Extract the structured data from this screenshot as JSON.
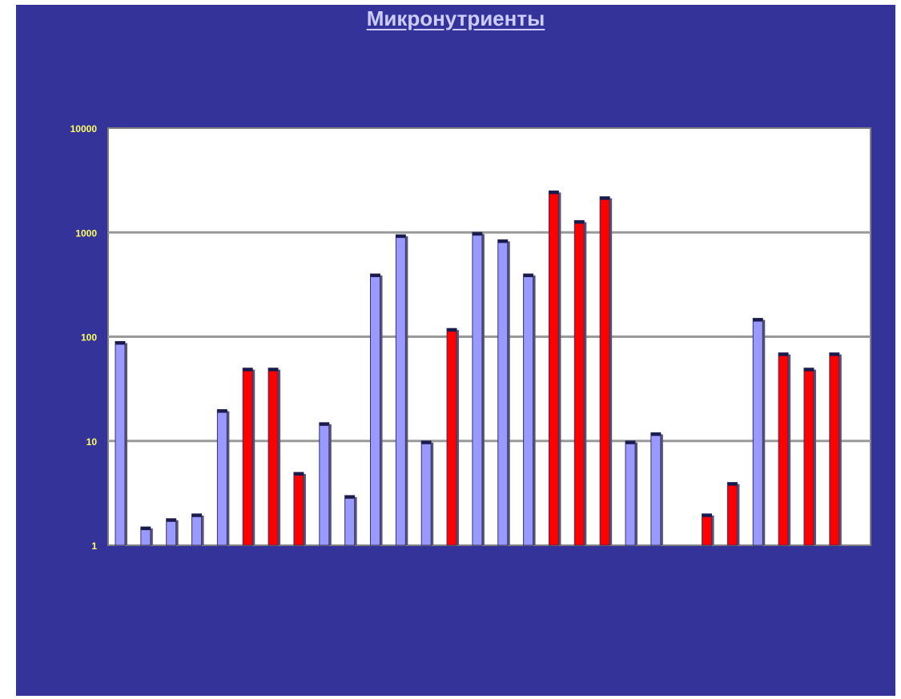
{
  "chart_data": {
    "type": "bar",
    "title": "Микронутриенты",
    "xlabel": "",
    "ylabel": "",
    "yscale": "log",
    "ylim": [
      1,
      10000
    ],
    "yticks": [
      "1",
      "10",
      "100",
      "1000",
      "10000"
    ],
    "grid": true,
    "categories": [
      "",
      "",
      "",
      "",
      "",
      "",
      "",
      "",
      "",
      "",
      "",
      "",
      "",
      "",
      "",
      "",
      "",
      "",
      "",
      "",
      "",
      "",
      "",
      "",
      "",
      "",
      "",
      "",
      "",
      "",
      ""
    ],
    "values": [
      90,
      1.5,
      1.8,
      2,
      20,
      50,
      50,
      5,
      15,
      3,
      400,
      950,
      10,
      120,
      1000,
      850,
      400,
      2500,
      1300,
      2200,
      10,
      12,
      1,
      2,
      4,
      150,
      70,
      50,
      70,
      0,
      0
    ],
    "colors": [
      "blue",
      "blue",
      "blue",
      "blue",
      "blue",
      "red",
      "red",
      "red",
      "blue",
      "blue",
      "blue",
      "blue",
      "blue",
      "red",
      "blue",
      "blue",
      "blue",
      "red",
      "red",
      "red",
      "blue",
      "blue",
      "blue",
      "red",
      "red",
      "blue",
      "red",
      "red",
      "red",
      "blue",
      "blue"
    ],
    "palette": {
      "blue": "#9999ff",
      "red": "#ff0000",
      "background": "#333399",
      "plot": "#ffffff",
      "grid": "#999999",
      "tick_label": "#ffff66"
    }
  }
}
